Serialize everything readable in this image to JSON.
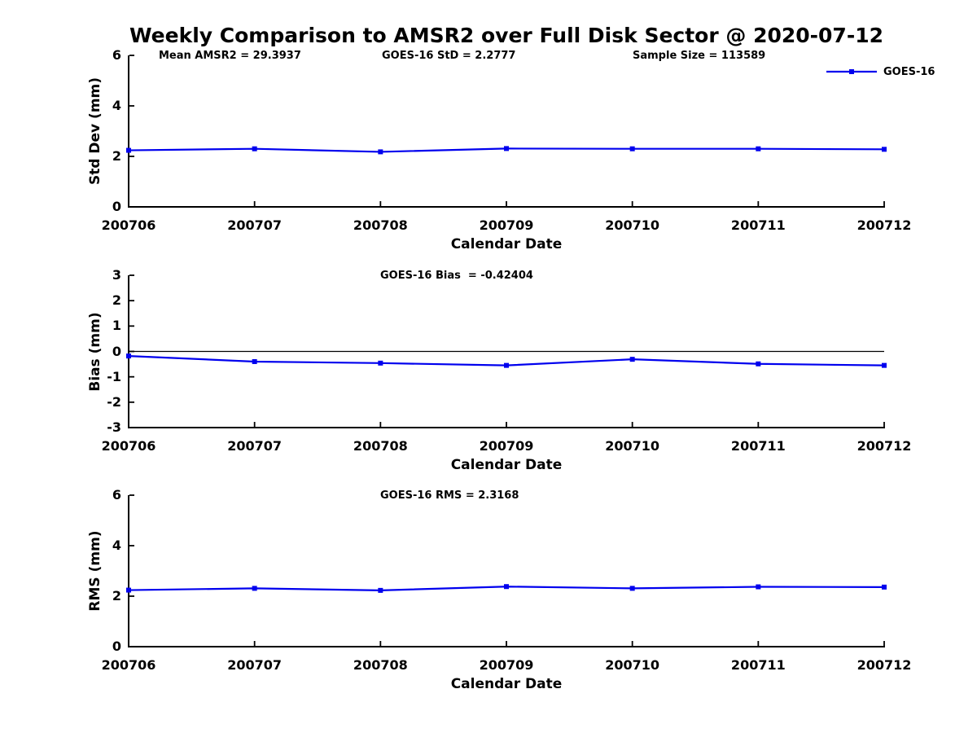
{
  "figure": {
    "title": "Weekly Comparison to AMSR2 over Full Disk Sector @ 2020-07-12",
    "legend": {
      "label": "GOES-16"
    }
  },
  "colors": {
    "series": "#0000EE",
    "axis": "#000000",
    "zero_line": "#000000"
  },
  "chart_data": {
    "type": "line",
    "series_name": "GOES-16",
    "marker": "square",
    "grid": false,
    "legend_position": "top-right",
    "xlabel": "Calendar Date",
    "x_categories": [
      "200706",
      "200707",
      "200708",
      "200709",
      "200710",
      "200711",
      "200712"
    ],
    "subplots": [
      {
        "id": "std-dev",
        "ylabel": "Std Dev (mm)",
        "ylim": [
          0,
          6
        ],
        "yticks": [
          0,
          2,
          4,
          6
        ],
        "annotations": [
          "Mean AMSR2 = 29.3937",
          "GOES-16 StD = 2.2777",
          "Sample Size = 113589"
        ],
        "values": [
          2.24,
          2.3,
          2.18,
          2.31,
          2.3,
          2.3,
          2.28
        ]
      },
      {
        "id": "bias",
        "ylabel": "Bias (mm)",
        "ylim": [
          -3,
          3
        ],
        "yticks": [
          3,
          2,
          1,
          0,
          -1,
          -2,
          -3
        ],
        "zero_line": true,
        "annotations": [
          "GOES-16 Bias  = -0.42404"
        ],
        "values": [
          -0.18,
          -0.4,
          -0.46,
          -0.55,
          -0.31,
          -0.49,
          -0.55
        ]
      },
      {
        "id": "rms",
        "ylabel": "RMS (mm)",
        "ylim": [
          0,
          6
        ],
        "yticks": [
          0,
          2,
          4,
          6
        ],
        "annotations": [
          "GOES-16 RMS = 2.3168"
        ],
        "values": [
          2.24,
          2.31,
          2.23,
          2.38,
          2.31,
          2.37,
          2.36
        ]
      }
    ]
  }
}
